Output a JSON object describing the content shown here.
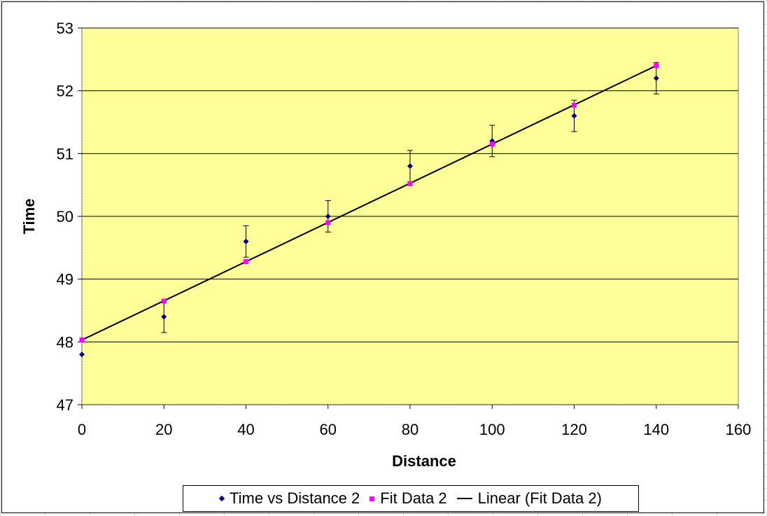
{
  "chart_data": {
    "type": "scatter",
    "title": "",
    "xlabel": "Distance",
    "ylabel": "Time",
    "xlim": [
      0,
      160
    ],
    "ylim": [
      47,
      53
    ],
    "xticks": [
      "0",
      "20",
      "40",
      "60",
      "80",
      "100",
      "120",
      "140",
      "160"
    ],
    "yticks": [
      "47",
      "48",
      "49",
      "50",
      "51",
      "52",
      "53"
    ],
    "grid": "horizontal",
    "plot_background": "#ffff99",
    "legend_position": "bottom",
    "series": [
      {
        "name": "Time vs Distance 2",
        "marker": "diamond",
        "color": "#000080",
        "x": [
          0,
          20,
          40,
          60,
          80,
          100,
          120,
          140
        ],
        "y": [
          47.8,
          48.4,
          49.6,
          50.0,
          50.8,
          51.2,
          51.6,
          52.2
        ],
        "error_y": 0.25
      },
      {
        "name": "Fit Data 2",
        "marker": "square",
        "color": "#ff00ff",
        "x": [
          0,
          20,
          40,
          60,
          80,
          100,
          120,
          140
        ],
        "y": [
          48.03,
          48.65,
          49.28,
          49.9,
          50.52,
          51.15,
          51.77,
          52.4
        ]
      },
      {
        "name": "Linear (Fit Data 2)",
        "line": true,
        "color": "#000000",
        "x": [
          0,
          140
        ],
        "y": [
          48.03,
          52.4
        ]
      }
    ]
  }
}
